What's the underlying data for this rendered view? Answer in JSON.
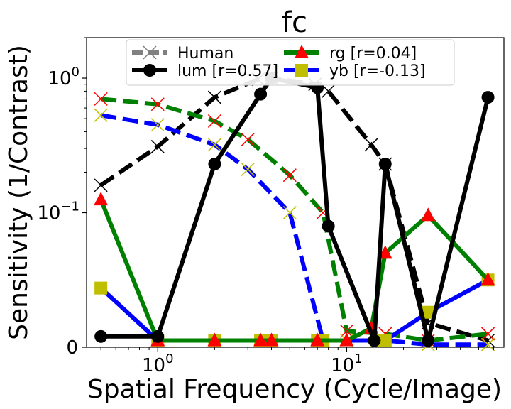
{
  "chart_data": {
    "type": "line",
    "title": "fc",
    "xlabel": "Spatial Frequency (Cycle/Image)",
    "ylabel": "Sensitivity (1/Contrast)",
    "x_scale": "log",
    "y_scale": "symlog",
    "xlim": [
      0.42,
      68
    ],
    "ylim": [
      0,
      2.0
    ],
    "x_ticks": [
      {
        "value": 1,
        "base": "10",
        "exp": "0"
      },
      {
        "value": 10,
        "base": "10",
        "exp": "1"
      }
    ],
    "y_ticks": [
      {
        "value": 0,
        "label": "0"
      },
      {
        "value": 0.1,
        "base": "10",
        "exp": "−1"
      },
      {
        "value": 1,
        "base": "10",
        "exp": "0"
      }
    ],
    "legend": {
      "placement": "top-center",
      "entries": [
        {
          "label": "Human",
          "color": "#808080",
          "marker": "x",
          "style": "dashed"
        },
        {
          "label": "lum [r=0.57]",
          "color": "#000000",
          "marker": "circle",
          "style": "solid"
        },
        {
          "label": "rg    [r=0.04]",
          "color": "#008000",
          "marker": "triangle",
          "style": "solid",
          "marker_color": "#ff0000"
        },
        {
          "label": "yb    [r=-0.13]",
          "color": "#0000ff",
          "marker": "square",
          "style": "solid",
          "marker_color": "#bfbf00"
        }
      ]
    },
    "series": [
      {
        "key": "human-lum",
        "color": "#000000",
        "marker_color": "#000000",
        "style": "dashed",
        "marker": "x",
        "points": [
          [
            0.5,
            0.16
          ],
          [
            1,
            0.31
          ],
          [
            2,
            0.72
          ],
          [
            3.4,
            0.98
          ],
          [
            4,
            1.0
          ],
          [
            6.8,
            0.9
          ],
          [
            8,
            0.8
          ],
          [
            13.5,
            0.32
          ],
          [
            16,
            0.23
          ],
          [
            27,
            0.018
          ],
          [
            56,
            0.005
          ]
        ]
      },
      {
        "key": "human-rg",
        "color": "#008000",
        "marker_color": "#ff0000",
        "style": "dashed",
        "marker": "x",
        "points": [
          [
            0.5,
            0.7
          ],
          [
            1,
            0.64
          ],
          [
            2,
            0.48
          ],
          [
            3,
            0.35
          ],
          [
            5,
            0.19
          ],
          [
            7.5,
            0.1
          ],
          [
            10,
            0.012
          ],
          [
            16,
            0.01
          ],
          [
            27,
            0.005
          ],
          [
            56,
            0.01
          ]
        ]
      },
      {
        "key": "human-yb",
        "color": "#0000ff",
        "marker_color": "#bfbf00",
        "style": "dashed",
        "marker": "x",
        "points": [
          [
            0.5,
            0.53
          ],
          [
            1,
            0.45
          ],
          [
            2,
            0.32
          ],
          [
            3,
            0.21
          ],
          [
            5,
            0.1
          ],
          [
            7.5,
            0.005
          ],
          [
            10,
            0.005
          ],
          [
            16,
            0.005
          ],
          [
            27,
            0.002
          ],
          [
            56,
            0.002
          ]
        ]
      },
      {
        "key": "model-yb",
        "color": "#0000ff",
        "marker_color": "#bfbf00",
        "style": "solid",
        "marker": "square",
        "points": [
          [
            0.5,
            0.044
          ],
          [
            1,
            0.005
          ],
          [
            2,
            0.005
          ],
          [
            3.5,
            0.005
          ],
          [
            4,
            0.005
          ],
          [
            7,
            0.005
          ],
          [
            7.5,
            0.005
          ],
          [
            14.5,
            0.005
          ],
          [
            16,
            0.005
          ],
          [
            27,
            0.026
          ],
          [
            56,
            0.05
          ]
        ]
      },
      {
        "key": "model-rg",
        "color": "#008000",
        "marker_color": "#ff0000",
        "style": "solid",
        "marker": "triangle",
        "points": [
          [
            0.5,
            0.125
          ],
          [
            1,
            0.005
          ],
          [
            2,
            0.005
          ],
          [
            3.5,
            0.005
          ],
          [
            4,
            0.005
          ],
          [
            7,
            0.005
          ],
          [
            10,
            0.005
          ],
          [
            13.5,
            0.014
          ],
          [
            16,
            0.07
          ],
          [
            27,
            0.098
          ],
          [
            56,
            0.05
          ]
        ]
      },
      {
        "key": "model-lum",
        "color": "#000000",
        "marker_color": "#000000",
        "style": "solid",
        "marker": "circle",
        "points": [
          [
            0.5,
            0.008
          ],
          [
            1,
            0.008
          ],
          [
            2,
            0.23
          ],
          [
            3.5,
            0.76
          ],
          [
            4,
            1.0
          ],
          [
            7,
            0.85
          ],
          [
            8,
            0.09
          ],
          [
            14,
            0.005
          ],
          [
            16,
            0.23
          ],
          [
            27,
            0.005
          ],
          [
            56,
            0.72
          ]
        ]
      }
    ]
  }
}
